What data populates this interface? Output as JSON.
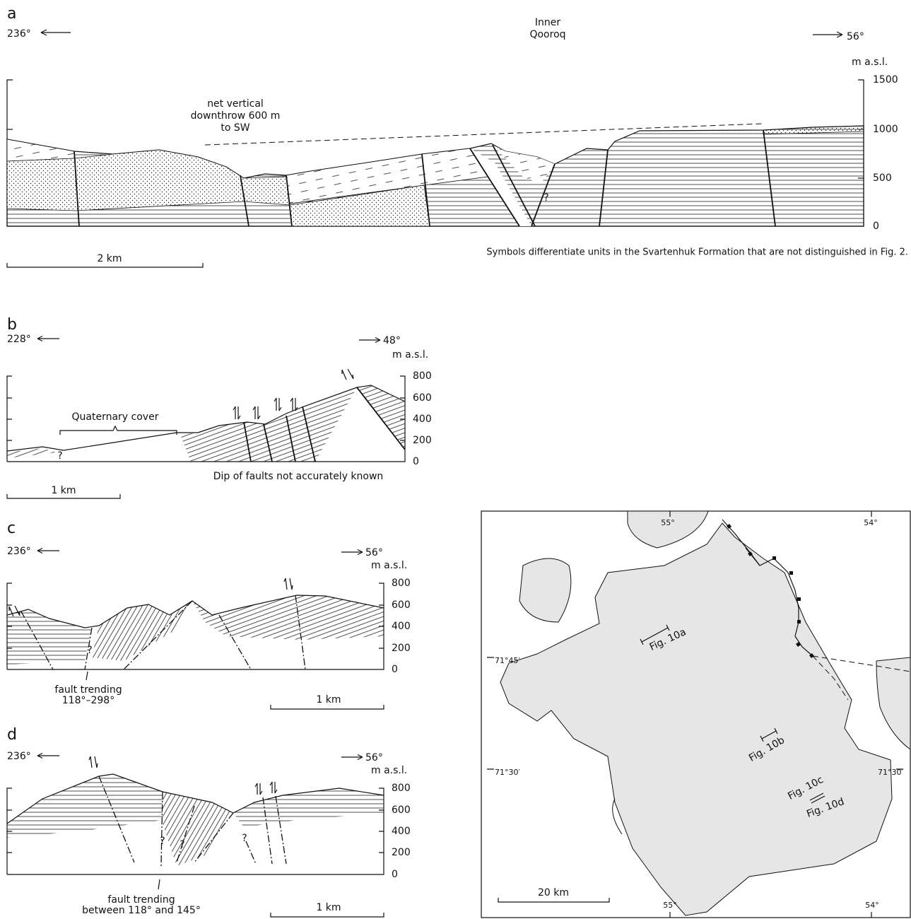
{
  "panels": [
    {
      "label": "a",
      "left_azimuth": "236°",
      "right_azimuth": "56°",
      "center_label": [
        "Inner",
        "Qooroq"
      ],
      "axis_title": "m a.s.l.",
      "axis_ticks": [
        "1500",
        "1000",
        "500",
        "0"
      ],
      "annotation": [
        "net vertical",
        "downthrow 600 m",
        "to SW"
      ],
      "query_marks": [
        "?"
      ],
      "note": "Symbols differentiate units in the Svartenhuk Formation that are not distinguished in Fig. 2.",
      "scale": "2 km"
    },
    {
      "label": "b",
      "left_azimuth": "228°",
      "right_azimuth": "48°",
      "axis_title": "m a.s.l.",
      "axis_ticks": [
        "800",
        "600",
        "400",
        "200",
        "0"
      ],
      "annotation": [
        "Quaternary cover"
      ],
      "query_marks": [
        "?"
      ],
      "note": "Dip of faults not accurately known",
      "scale": "1 km"
    },
    {
      "label": "c",
      "left_azimuth": "236°",
      "right_azimuth": "56°",
      "axis_title": "m a.s.l.",
      "axis_ticks": [
        "800",
        "600",
        "400",
        "200",
        "0"
      ],
      "annotation": [
        "fault trending",
        "118°–298°"
      ],
      "query_marks": [
        "?"
      ],
      "scale": "1 km"
    },
    {
      "label": "d",
      "left_azimuth": "236°",
      "right_azimuth": "56°",
      "axis_title": "m a.s.l.",
      "axis_ticks": [
        "800",
        "600",
        "400",
        "200",
        "0"
      ],
      "annotation": [
        "fault trending",
        "between 118° and 145°"
      ],
      "query_marks": [
        "?",
        "?",
        "?"
      ],
      "scale": "1 km"
    }
  ],
  "map": {
    "longitudes_top": [
      "55°",
      "54°"
    ],
    "longitudes_bottom": [
      "55°",
      "54°"
    ],
    "latitudes": [
      "71°45′",
      "71°30′",
      "71°30′"
    ],
    "figure_refs": [
      "Fig. 10a",
      "Fig. 10b",
      "Fig. 10c",
      "Fig. 10d"
    ],
    "scale": "20 km"
  }
}
